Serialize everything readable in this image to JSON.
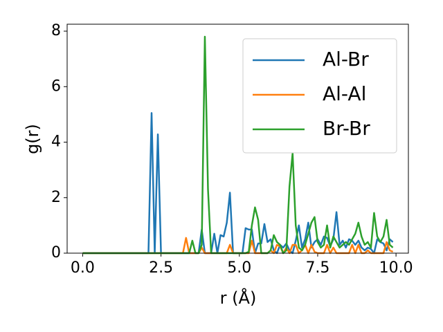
{
  "chart_data": {
    "type": "line",
    "xlabel": "r (Å)",
    "ylabel": "g(r)",
    "x": [
      0,
      0.1,
      0.2,
      0.3,
      0.4,
      0.5,
      0.6,
      0.7,
      0.8,
      0.9,
      1,
      1.1,
      1.2,
      1.3,
      1.4,
      1.5,
      1.6,
      1.7,
      1.8,
      1.9,
      2,
      2.1,
      2.2,
      2.3,
      2.4,
      2.5,
      2.6,
      2.7,
      2.8,
      2.9,
      3,
      3.1,
      3.2,
      3.3,
      3.4,
      3.5,
      3.6,
      3.7,
      3.8,
      3.9,
      4,
      4.1,
      4.2,
      4.3,
      4.4,
      4.5,
      4.6,
      4.7,
      4.8,
      4.9,
      5,
      5.1,
      5.2,
      5.3,
      5.4,
      5.5,
      5.6,
      5.7,
      5.8,
      5.9,
      6,
      6.1,
      6.2,
      6.3,
      6.4,
      6.5,
      6.6,
      6.7,
      6.8,
      6.9,
      7,
      7.1,
      7.2,
      7.3,
      7.4,
      7.5,
      7.6,
      7.7,
      7.8,
      7.9,
      8,
      8.1,
      8.2,
      8.3,
      8.4,
      8.5,
      8.6,
      8.7,
      8.8,
      8.9,
      9,
      9.1,
      9.2,
      9.3,
      9.4,
      9.5,
      9.6,
      9.7,
      9.8,
      9.9
    ],
    "series": [
      {
        "name": "Al-Br",
        "color": "#1f77b4",
        "values": [
          0,
          0,
          0,
          0,
          0,
          0,
          0,
          0,
          0,
          0,
          0,
          0,
          0,
          0,
          0,
          0,
          0,
          0,
          0,
          0,
          0,
          0,
          5.05,
          0,
          4.28,
          0,
          0,
          0,
          0,
          0,
          0,
          0,
          0,
          0,
          0,
          0,
          0,
          0,
          0.85,
          0,
          0,
          0,
          0.7,
          0,
          0.65,
          0.6,
          1.1,
          2.18,
          0,
          0,
          0,
          0,
          0.9,
          0.85,
          0.85,
          0,
          0.35,
          0.35,
          1.05,
          0.4,
          0.5,
          0.1,
          0,
          0.3,
          0.2,
          0.35,
          0.1,
          0,
          0.45,
          1.0,
          0.2,
          0.5,
          1.1,
          0.2,
          0.4,
          0.5,
          0.3,
          0.6,
          0.55,
          0.25,
          0.5,
          1.48,
          0.3,
          0.45,
          0.2,
          0.5,
          0.45,
          0.3,
          0.45,
          0.2,
          0.1,
          0.2,
          0.15,
          0,
          0.5,
          0.4,
          0.35,
          0.1,
          0.5,
          0.4
        ]
      },
      {
        "name": "Al-Al",
        "color": "#ff7f0e",
        "values": [
          0,
          0,
          0,
          0,
          0,
          0,
          0,
          0,
          0,
          0,
          0,
          0,
          0,
          0,
          0,
          0,
          0,
          0,
          0,
          0,
          0,
          0,
          0,
          0,
          0,
          0,
          0,
          0,
          0,
          0,
          0,
          0,
          0,
          0.55,
          0,
          0,
          0,
          0,
          0.2,
          0,
          0,
          0,
          0,
          0,
          0,
          0,
          0,
          0.3,
          0,
          0,
          0,
          0,
          0,
          0,
          0.45,
          0,
          0,
          0,
          0,
          0,
          0.1,
          0,
          0.3,
          0.25,
          0,
          0.2,
          0,
          0.3,
          0.3,
          0,
          0.1,
          0.3,
          0,
          0.3,
          0.05,
          0,
          0,
          0,
          0.3,
          0,
          0.2,
          0,
          0,
          0,
          0,
          0,
          0.3,
          0,
          0.3,
          0,
          0,
          0.1,
          0,
          0,
          0,
          0,
          0,
          0.4,
          0.1,
          0.05
        ]
      },
      {
        "name": "Br-Br",
        "color": "#2ca02c",
        "values": [
          0,
          0,
          0,
          0,
          0,
          0,
          0,
          0,
          0,
          0,
          0,
          0,
          0,
          0,
          0,
          0,
          0,
          0,
          0,
          0,
          0,
          0,
          0,
          0,
          0,
          0,
          0,
          0,
          0,
          0,
          0,
          0,
          0,
          0,
          0,
          0.45,
          0,
          0,
          0.3,
          7.8,
          2.3,
          0,
          0,
          0,
          0,
          0,
          0,
          0,
          0,
          0,
          0,
          0,
          0,
          0.05,
          1.0,
          1.65,
          1.2,
          0,
          0,
          0,
          0.1,
          0.65,
          0.4,
          0.3,
          0,
          0.1,
          2.4,
          3.6,
          1.0,
          0.2,
          0.1,
          0.3,
          0.7,
          1.1,
          1.3,
          0.4,
          0.2,
          0.3,
          1.0,
          0.2,
          0.6,
          0.4,
          0.2,
          0.3,
          0.4,
          0.3,
          0.5,
          0.7,
          1.1,
          0.6,
          0.3,
          0.4,
          0.2,
          1.45,
          0.6,
          0.4,
          0.6,
          1.2,
          0.3,
          0.2
        ]
      }
    ],
    "xlim": [
      -0.495,
      10.395
    ],
    "xticks": [
      {
        "value": 0,
        "label": "0.0"
      },
      2.5,
      {
        "value": 5,
        "label": "5.0"
      },
      7.5,
      {
        "value": 10,
        "label": "10.0"
      }
    ],
    "ylim": [
      0,
      8.25
    ],
    "yticks": [
      0,
      2,
      4,
      6,
      8
    ],
    "legend": "upper right"
  }
}
